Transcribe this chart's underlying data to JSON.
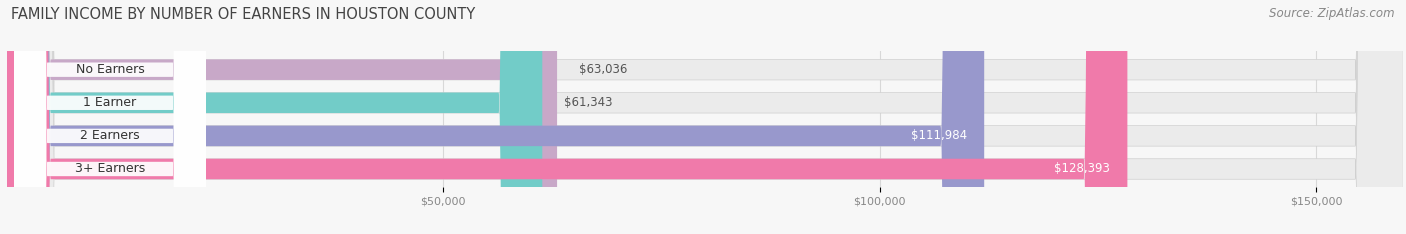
{
  "title": "FAMILY INCOME BY NUMBER OF EARNERS IN HOUSTON COUNTY",
  "source": "Source: ZipAtlas.com",
  "categories": [
    "No Earners",
    "1 Earner",
    "2 Earners",
    "3+ Earners"
  ],
  "values": [
    63036,
    61343,
    111984,
    128393
  ],
  "labels": [
    "$63,036",
    "$61,343",
    "$111,984",
    "$128,393"
  ],
  "bar_colors": [
    "#c8a8c8",
    "#72ccc8",
    "#9898cc",
    "#f07aaa"
  ],
  "xmin": 0,
  "xmax": 160000,
  "xticks": [
    50000,
    100000,
    150000
  ],
  "xticklabels": [
    "$50,000",
    "$100,000",
    "$150,000"
  ],
  "title_fontsize": 10.5,
  "source_fontsize": 8.5,
  "label_fontsize": 8.5,
  "category_fontsize": 9,
  "bar_height": 0.62,
  "background_color": "#f7f7f7",
  "bar_bg_color": "#ebebeb",
  "label_box_color": "#ffffff",
  "short_bar_threshold": 90000,
  "grid_color": "#d8d8d8",
  "tick_color": "#888888",
  "title_color": "#444444",
  "source_color": "#888888"
}
